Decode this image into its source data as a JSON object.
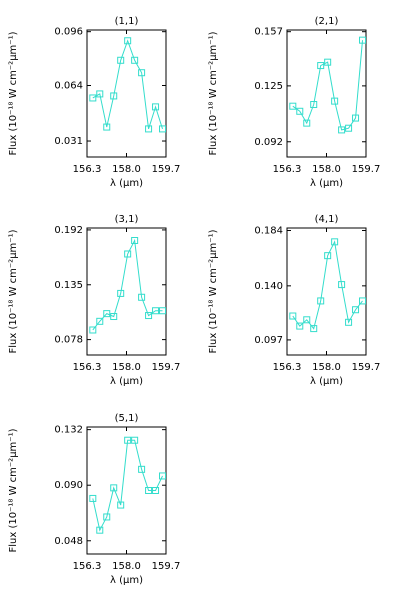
{
  "chart_data": [
    {
      "type": "line",
      "title": "(1,1)",
      "xlabel": "λ (μm)",
      "ylabel": "Flux (10⁻¹⁸ W cm⁻²μm⁻¹)",
      "x": [
        156.55,
        156.85,
        157.15,
        157.45,
        157.75,
        158.05,
        158.35,
        158.65,
        158.95,
        159.25,
        159.55
      ],
      "series": [
        {
          "color": "#33ddcc",
          "values": [
            0.0566,
            0.059,
            0.0393,
            0.0578,
            0.079,
            0.0906,
            0.079,
            0.0716,
            0.0382,
            0.0513,
            0.0382
          ]
        }
      ],
      "xlim": [
        156.3,
        159.7
      ],
      "xticks": [
        156.3,
        {
          "value": 158,
          "label": "158.0"
        },
        159.7
      ],
      "ylim": [
        0.0215,
        0.097
      ],
      "yticks": [
        0.031,
        0.064,
        0.096
      ]
    },
    {
      "type": "line",
      "title": "(2,1)",
      "xlabel": "λ (μm)",
      "ylabel": "Flux (10⁻¹⁸ W cm⁻²μm⁻¹)",
      "x": [
        156.55,
        156.85,
        157.15,
        157.45,
        157.75,
        158.05,
        158.35,
        158.65,
        158.95,
        159.25,
        159.55
      ],
      "series": [
        {
          "color": "#33ddcc",
          "values": [
            0.113,
            0.11,
            0.103,
            0.114,
            0.137,
            0.139,
            0.116,
            0.099,
            0.1,
            0.106,
            0.152
          ]
        }
      ],
      "xlim": [
        156.3,
        159.7
      ],
      "xticks": [
        156.3,
        {
          "value": 158,
          "label": "158.0"
        },
        159.7
      ],
      "ylim": [
        0.083,
        0.158
      ],
      "yticks": [
        0.092,
        0.125,
        0.157
      ]
    },
    {
      "type": "line",
      "title": "(3,1)",
      "xlabel": "λ (μm)",
      "ylabel": "Flux (10⁻¹⁸ W cm⁻²μm⁻¹)",
      "x": [
        156.55,
        156.85,
        157.15,
        157.45,
        157.75,
        158.05,
        158.35,
        158.65,
        158.95,
        159.25,
        159.55
      ],
      "series": [
        {
          "color": "#33ddcc",
          "values": [
            0.088,
            0.097,
            0.105,
            0.102,
            0.126,
            0.167,
            0.181,
            0.122,
            0.103,
            0.108,
            0.108
          ]
        }
      ],
      "xlim": [
        156.3,
        159.7
      ],
      "xticks": [
        156.3,
        {
          "value": 158,
          "label": "158.0"
        },
        159.7
      ],
      "ylim": [
        0.062,
        0.194
      ],
      "yticks": [
        0.078,
        0.135,
        0.192
      ]
    },
    {
      "type": "line",
      "title": "(4,1)",
      "xlabel": "λ (μm)",
      "ylabel": "Flux (10⁻¹⁸ W cm⁻²μm⁻¹)",
      "x": [
        156.55,
        156.85,
        157.15,
        157.45,
        157.75,
        158.05,
        158.35,
        158.65,
        158.95,
        159.25,
        159.55
      ],
      "series": [
        {
          "color": "#33ddcc",
          "values": [
            0.116,
            0.108,
            0.113,
            0.106,
            0.128,
            0.164,
            0.175,
            0.141,
            0.111,
            0.121,
            0.128
          ]
        }
      ],
      "xlim": [
        156.3,
        159.7
      ],
      "xticks": [
        156.3,
        {
          "value": 158,
          "label": "158.0"
        },
        159.7
      ],
      "ylim": [
        0.085,
        0.186
      ],
      "yticks": [
        0.097,
        {
          "value": 0.14,
          "label": "0.140"
        },
        0.184
      ]
    },
    {
      "type": "line",
      "title": "(5,1)",
      "xlabel": "λ (μm)",
      "ylabel": "Flux (10⁻¹⁸ W cm⁻²μm⁻¹)",
      "x": [
        156.55,
        156.85,
        157.15,
        157.45,
        157.75,
        158.05,
        158.35,
        158.65,
        158.95,
        159.25,
        159.55
      ],
      "series": [
        {
          "color": "#33ddcc",
          "values": [
            0.08,
            0.056,
            0.066,
            0.088,
            0.075,
            0.124,
            0.124,
            0.102,
            0.086,
            0.086,
            0.097
          ]
        }
      ],
      "xlim": [
        156.3,
        159.7
      ],
      "xticks": [
        156.3,
        {
          "value": 158,
          "label": "158.0"
        },
        159.7
      ],
      "ylim": [
        0.038,
        0.134
      ],
      "yticks": [
        0.048,
        {
          "value": 0.09,
          "label": "0.090"
        },
        0.132
      ]
    }
  ]
}
